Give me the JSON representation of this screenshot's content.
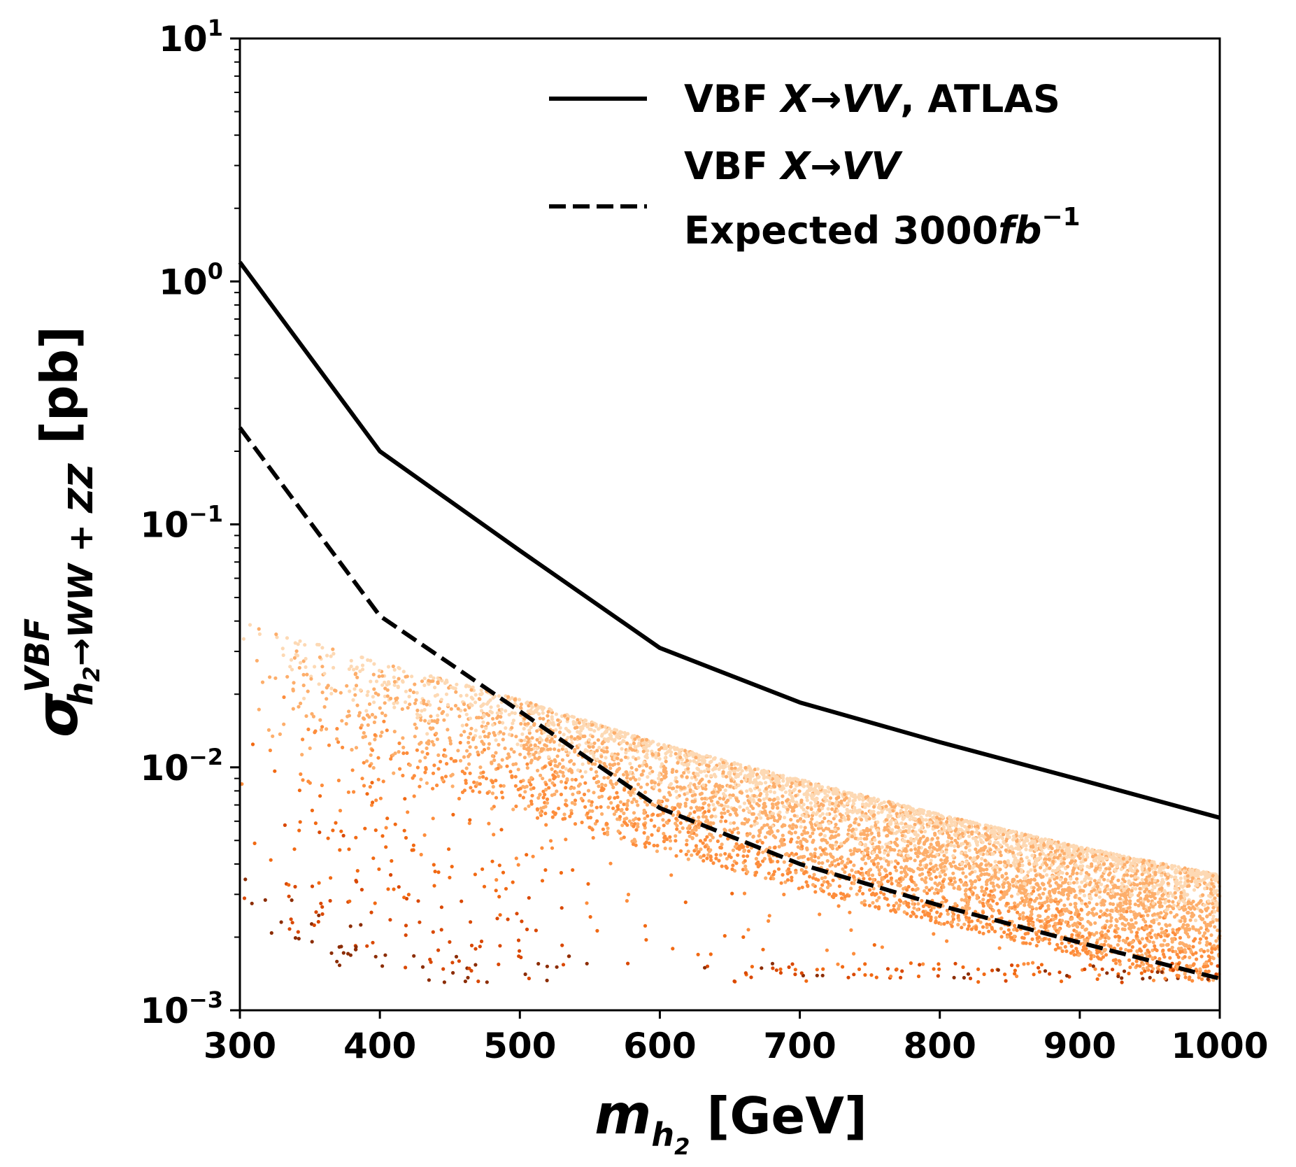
{
  "chart_data": {
    "type": "line+scatter",
    "xlabel": {
      "main": "m",
      "sub": "h",
      "subsub": "2",
      "unit": "[GeV]"
    },
    "ylabel": {
      "main": "σ",
      "sup": "VBF",
      "sub_a": "h",
      "sub_b": "2",
      "sub_c": "→WW + ZZ",
      "unit": "[pb]"
    },
    "xlim": [
      300,
      1000
    ],
    "ylim": [
      0.001,
      10
    ],
    "yscale": "log",
    "x_ticks": [
      300,
      400,
      500,
      600,
      700,
      800,
      900,
      1000
    ],
    "x_tick_labels": [
      "300",
      "400",
      "500",
      "600",
      "700",
      "800",
      "900",
      "1000"
    ],
    "y_ticks": [
      {
        "value": 10,
        "base": "10",
        "exp": "1"
      },
      {
        "value": 1,
        "base": "10",
        "exp": "0"
      },
      {
        "value": 0.1,
        "base": "10",
        "exp": "−1"
      },
      {
        "value": 0.01,
        "base": "10",
        "exp": "−2"
      },
      {
        "value": 0.001,
        "base": "10",
        "exp": "−3"
      }
    ],
    "series": [
      {
        "name": "VBF X→VV, ATLAS",
        "legend_parts": [
          {
            "text": "VBF ",
            "italic": false
          },
          {
            "text": "X→VV",
            "italic": true
          },
          {
            "text": ", ATLAS",
            "italic": false
          }
        ],
        "style": "solid",
        "color": "#000000",
        "x": [
          300,
          400,
          500,
          600,
          700,
          800,
          900,
          1000
        ],
        "y": [
          1.2,
          0.2,
          0.078,
          0.031,
          0.0185,
          0.0127,
          0.0089,
          0.0062
        ]
      },
      {
        "name": "VBF X→VV Expected 3000fb−1",
        "legend_line1_parts": [
          {
            "text": "VBF ",
            "italic": false
          },
          {
            "text": "X→VV",
            "italic": true
          }
        ],
        "legend_line2_parts": [
          {
            "text": "Expected 3000",
            "italic": false
          },
          {
            "text": "fb",
            "italic": true
          }
        ],
        "legend_line2_sup": "−1",
        "style": "dashed",
        "color": "#000000",
        "x": [
          300,
          400,
          500,
          600,
          700,
          800,
          900,
          1000
        ],
        "y": [
          0.25,
          0.042,
          0.017,
          0.0068,
          0.004,
          0.0027,
          0.0019,
          0.00135
        ]
      }
    ],
    "scatter": {
      "description_colormap": [
        "#fdd9b4",
        "#fdae6b",
        "#fd8d3c",
        "#f16913",
        "#d94801",
        "#8c2d04"
      ],
      "upper_envelope": {
        "x": [
          300,
          400,
          500,
          600,
          700,
          800,
          900,
          1000
        ],
        "y": [
          0.04,
          0.027,
          0.019,
          0.0125,
          0.0089,
          0.0064,
          0.0047,
          0.0036
        ]
      },
      "band_lower_envelope": {
        "x": [
          500,
          600,
          700,
          800,
          900,
          1000
        ],
        "y": [
          0.011,
          0.0068,
          0.0045,
          0.003,
          0.0022,
          0.0018
        ]
      },
      "min_y": 0.0013,
      "x_range": [
        300,
        1000
      ]
    },
    "legend_position": "top-right"
  }
}
